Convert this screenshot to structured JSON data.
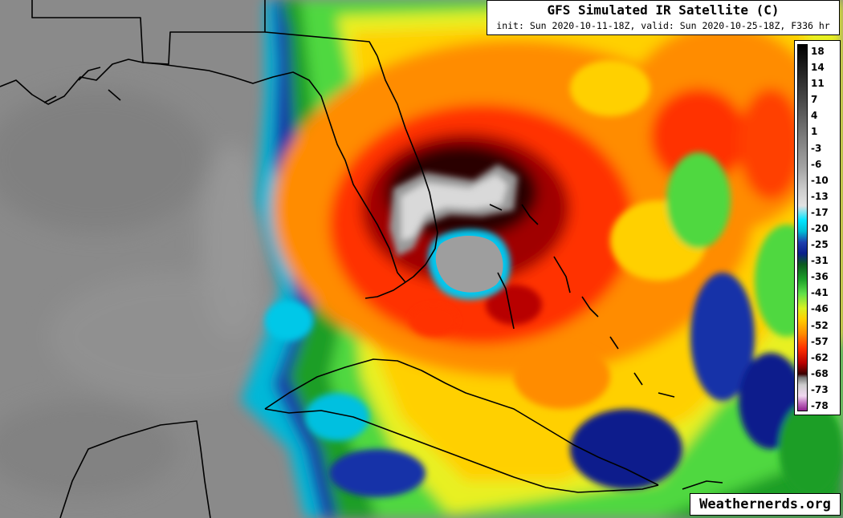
{
  "header": {
    "title": "GFS Simulated IR Satellite (C)",
    "subtitle": "init: Sun 2020-10-11-18Z, valid: Sun 2020-10-25-18Z, F336 hr"
  },
  "legend": {
    "labels": [
      "18",
      "14",
      "11",
      "7",
      "4",
      "1",
      "-3",
      "-6",
      "-10",
      "-13",
      "-17",
      "-20",
      "-25",
      "-31",
      "-36",
      "-41",
      "-46",
      "-52",
      "-57",
      "-62",
      "-68",
      "-73",
      "-78"
    ]
  },
  "watermark": {
    "text": "Weathernerds.org"
  },
  "colors": {
    "background_gray": "#808080",
    "coastline": "#000000",
    "cold_top": "#e0e0e0",
    "deep_red": "#b80000",
    "orange": "#ff8c00",
    "yellow": "#ffd000",
    "green": "#1a9e28",
    "blue": "#0a1f8c",
    "cyan": "#00bcd4"
  }
}
